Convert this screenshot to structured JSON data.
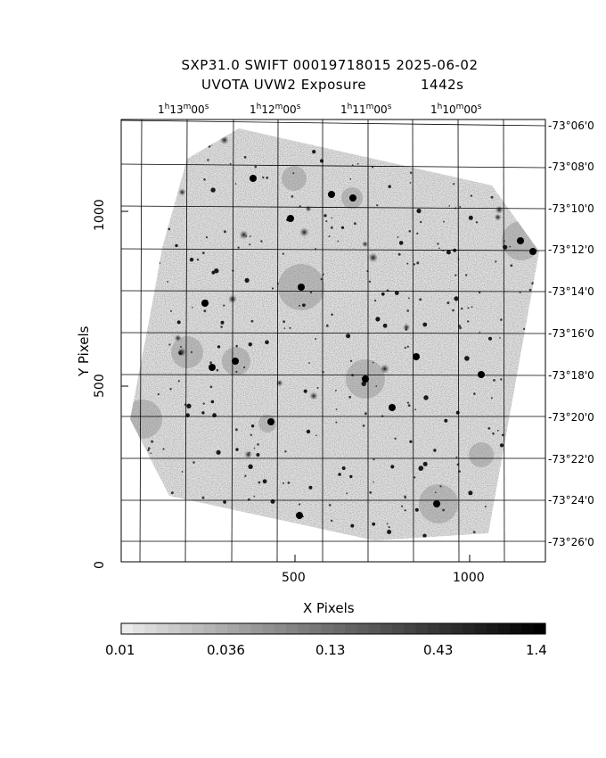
{
  "header": {
    "title": "SXP31.0 SWIFT 00019718015 2025-06-02",
    "exposure_label": "UVOTA UVW2 Exposure",
    "exposure_value": "1442s"
  },
  "ra_labels": [
    {
      "h": "1",
      "m": "13",
      "s": "00"
    },
    {
      "h": "1",
      "m": "12",
      "s": "00"
    },
    {
      "h": "1",
      "m": "11",
      "s": "00"
    },
    {
      "h": "1",
      "m": "10",
      "s": "00"
    }
  ],
  "dec_labels": [
    "-73°06'0",
    "-73°08'0",
    "-73°10'0",
    "-73°12'0",
    "-73°14'0",
    "-73°16'0",
    "-73°18'0",
    "-73°20'0",
    "-73°22'0",
    "-73°24'0",
    "-73°26'0"
  ],
  "x_axis": {
    "label": "X Pixels",
    "ticks": [
      "500",
      "1000"
    ]
  },
  "y_axis": {
    "label": "Y Pixels",
    "ticks": [
      "0",
      "500",
      "1000"
    ]
  },
  "colorbar": {
    "ticks": [
      "0.01",
      "0.036",
      "0.13",
      "0.43",
      "1.4"
    ]
  },
  "colors": {
    "background": "#ffffff",
    "ink": "#000000"
  }
}
